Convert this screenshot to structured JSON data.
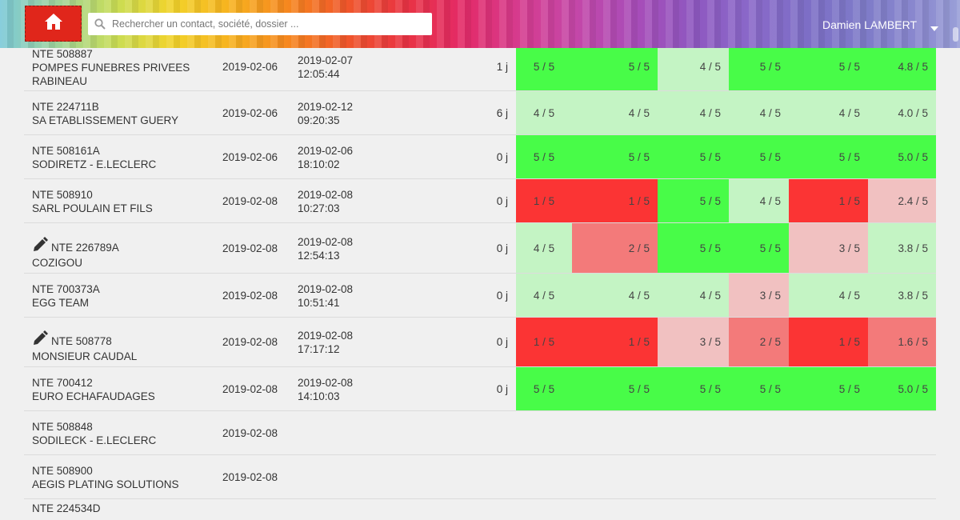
{
  "header": {
    "search_placeholder": "Rechercher un contact, société, dossier ...",
    "user_name": "Damien LAMBERT",
    "home_icon": "home-icon",
    "accent": "#e0261b"
  },
  "colors": {
    "high": "#48fc48",
    "good": "#c4f4c4",
    "mid": "#f1c1c1",
    "low": "#f37a7a",
    "bad": "#fb3434"
  },
  "rows": [
    {
      "ref": "NTE 508887",
      "name1": "POMPES FUNEBRES PRIVEES",
      "name2": "RABINEAU",
      "date": "2019-02-06",
      "closed_date": "2019-02-07",
      "closed_time": "12:05:44",
      "delay": "1 j",
      "scores": [
        "5 / 5",
        "5 / 5",
        "4 / 5",
        "5 / 5",
        "5 / 5",
        "4.8 / 5"
      ],
      "levels": [
        "high",
        "high",
        "good",
        "high",
        "high",
        "high"
      ]
    },
    {
      "ref": "NTE 224711B",
      "name1": "SA ETABLISSEMENT GUERY",
      "name2": "",
      "date": "2019-02-06",
      "closed_date": "2019-02-12",
      "closed_time": "09:20:35",
      "delay": "6 j",
      "scores": [
        "4 / 5",
        "4 / 5",
        "4 / 5",
        "4 / 5",
        "4 / 5",
        "4.0 / 5"
      ],
      "levels": [
        "good",
        "good",
        "good",
        "good",
        "good",
        "good"
      ]
    },
    {
      "ref": "NTE 508161A",
      "name1": "SODIRETZ - E.LECLERC",
      "name2": "",
      "date": "2019-02-06",
      "closed_date": "2019-02-06",
      "closed_time": "18:10:02",
      "delay": "0 j",
      "scores": [
        "5 / 5",
        "5 / 5",
        "5 / 5",
        "5 / 5",
        "5 / 5",
        "5.0 / 5"
      ],
      "levels": [
        "high",
        "high",
        "high",
        "high",
        "high",
        "high"
      ]
    },
    {
      "ref": "NTE 508910",
      "name1": "SARL POULAIN ET FILS",
      "name2": "",
      "date": "2019-02-08",
      "closed_date": "2019-02-08",
      "closed_time": "10:27:03",
      "delay": "0 j",
      "scores": [
        "1 / 5",
        "1 / 5",
        "5 / 5",
        "4 / 5",
        "1 / 5",
        "2.4 / 5"
      ],
      "levels": [
        "bad",
        "bad",
        "high",
        "good",
        "bad",
        "mid"
      ]
    },
    {
      "ref": "NTE 226789A",
      "name1": "COZIGOU",
      "name2": "",
      "edit": true,
      "date": "2019-02-08",
      "closed_date": "2019-02-08",
      "closed_time": "12:54:13",
      "delay": "0 j",
      "scores": [
        "4 / 5",
        "2 / 5",
        "5 / 5",
        "5 / 5",
        "3 / 5",
        "3.8 / 5"
      ],
      "levels": [
        "good",
        "low",
        "high",
        "high",
        "mid",
        "good"
      ]
    },
    {
      "ref": "NTE 700373A",
      "name1": "EGG TEAM",
      "name2": "",
      "date": "2019-02-08",
      "closed_date": "2019-02-08",
      "closed_time": "10:51:41",
      "delay": "0 j",
      "scores": [
        "4 / 5",
        "4 / 5",
        "4 / 5",
        "3 / 5",
        "4 / 5",
        "3.8 / 5"
      ],
      "levels": [
        "good",
        "good",
        "good",
        "mid",
        "good",
        "good"
      ]
    },
    {
      "ref": "NTE 508778",
      "name1": "MONSIEUR CAUDAL",
      "name2": "",
      "edit": true,
      "date": "2019-02-08",
      "closed_date": "2019-02-08",
      "closed_time": "17:17:12",
      "delay": "0 j",
      "scores": [
        "1 / 5",
        "1 / 5",
        "3 / 5",
        "2 / 5",
        "1 / 5",
        "1.6 / 5"
      ],
      "levels": [
        "bad",
        "bad",
        "mid",
        "low",
        "bad",
        "low"
      ]
    },
    {
      "ref": "NTE 700412",
      "name1": "EURO ECHAFAUDAGES",
      "name2": "",
      "date": "2019-02-08",
      "closed_date": "2019-02-08",
      "closed_time": "14:10:03",
      "delay": "0 j",
      "scores": [
        "5 / 5",
        "5 / 5",
        "5 / 5",
        "5 / 5",
        "5 / 5",
        "5.0 / 5"
      ],
      "levels": [
        "high",
        "high",
        "high",
        "high",
        "high",
        "high"
      ]
    },
    {
      "ref": "NTE 508848",
      "name1": "SODILECK - E.LECLERC",
      "name2": "",
      "date": "2019-02-08",
      "closed_date": "",
      "closed_time": "",
      "delay": "",
      "scores": [],
      "levels": []
    },
    {
      "ref": "NTE 508900",
      "name1": "AEGIS PLATING SOLUTIONS",
      "name2": "",
      "date": "2019-02-08",
      "closed_date": "",
      "closed_time": "",
      "delay": "",
      "scores": [],
      "levels": []
    },
    {
      "ref": "NTE 224534D",
      "name1": "",
      "name2": "",
      "date": "",
      "closed_date": "",
      "closed_time": "",
      "delay": "",
      "scores": [],
      "levels": []
    }
  ]
}
